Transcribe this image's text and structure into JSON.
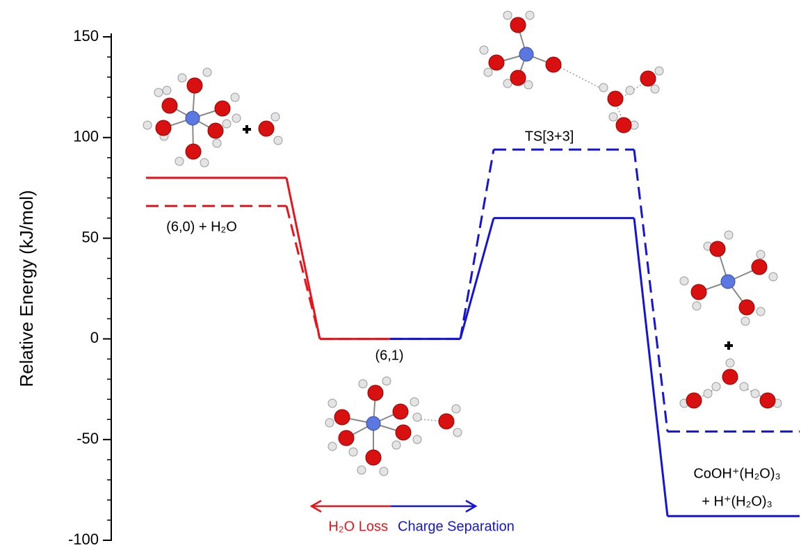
{
  "chart_data": {
    "type": "energy-diagram",
    "ylabel": "Relative Energy (kJ/mol)",
    "categories": [
      null,
      null,
      null,
      null
    ],
    "series": [
      {
        "color": "#e8141b",
        "dash": false,
        "values": [
          80,
          0,
          null,
          null
        ]
      },
      {
        "color": "#e8141b",
        "dash": true,
        "values": [
          66,
          0,
          null,
          null
        ]
      },
      {
        "color": "#1414d8",
        "dash": false,
        "values": [
          null,
          0,
          60,
          -88
        ]
      },
      {
        "color": "#1414d8",
        "dash": true,
        "values": [
          null,
          0,
          94,
          -46
        ]
      }
    ],
    "ylim": [
      -100,
      150
    ],
    "yticks": [
      -100,
      -50,
      0,
      50,
      100,
      150
    ],
    "yminorticks": [
      -90,
      -80,
      -70,
      -60,
      -40,
      -30,
      -20,
      -10,
      10,
      20,
      30,
      40,
      60,
      70,
      80,
      90,
      110,
      120,
      130,
      140
    ],
    "annotations": [
      "(6,0) + H₂O",
      "(6,1)",
      "TS[3+3]",
      "CoOH⁺(H₂O)₃",
      "+ H⁺(H₂O)₃"
    ],
    "direction_labels": [
      {
        "text": "H₂O Loss",
        "color": "#e8141b"
      },
      {
        "text": "Charge Separation",
        "color": "#1414d8"
      }
    ]
  }
}
